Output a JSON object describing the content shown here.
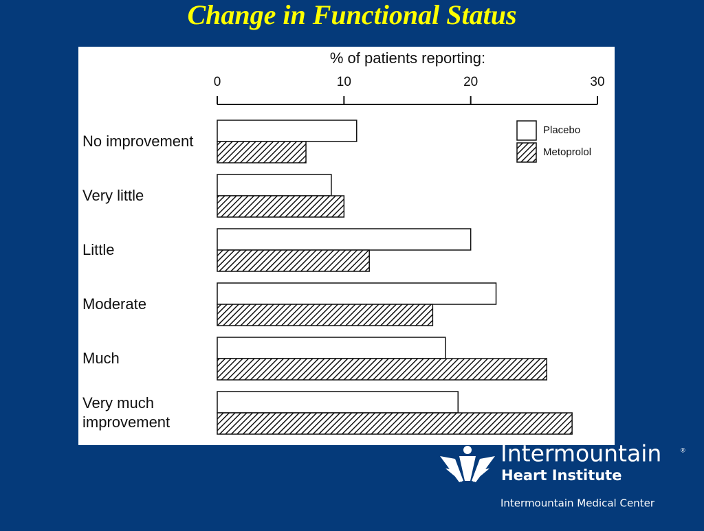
{
  "title": "Change in Functional Status",
  "chart_data": {
    "type": "barh",
    "xlabel": "% of patients reporting:",
    "categories": [
      "No improvement",
      "Very little",
      "Little",
      "Moderate",
      "Much",
      "Very much improvement"
    ],
    "series": [
      {
        "name": "Placebo",
        "color": "#ffffff",
        "hatch": false,
        "values": [
          11,
          9,
          20,
          22,
          18,
          19
        ]
      },
      {
        "name": "Metoprolol",
        "color": "#111111",
        "hatch": true,
        "values": [
          7,
          10,
          12,
          17,
          26,
          28
        ]
      }
    ],
    "xlim": [
      0,
      30
    ],
    "xticks": [
      0,
      10,
      20,
      30
    ],
    "axis_position": "top",
    "legend": "top-right"
  },
  "logo": {
    "name": "Intermountain",
    "mark": "®",
    "division": "Heart Institute",
    "center": "Intermountain Medical Center"
  }
}
